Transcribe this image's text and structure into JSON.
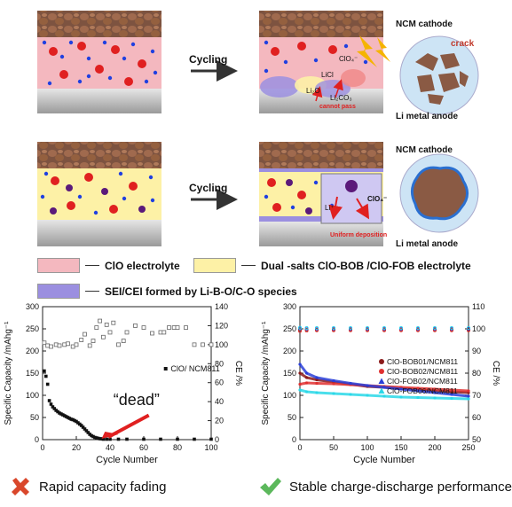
{
  "schematic": {
    "arrow_top_label": "Cycling",
    "arrow_bottom_label": "Cycling",
    "ncm_cathode_top": "NCM cathode",
    "ncm_cathode_bottom": "NCM cathode",
    "li_anode_top": "Li metal anode",
    "li_anode_bottom": "Li metal anode",
    "crack": "crack",
    "clo_top": "ClO₄⁻",
    "clo_bottom": "ClO₄⁻",
    "licl": "LiCl",
    "li2o": "Li₂O",
    "li2co3": "Li₂CO₃",
    "li_plus": "Li⁺",
    "cannot_pass": "cannot pass",
    "uniform_deposition": "Uniform deposition"
  },
  "legend": {
    "item1": "ClO electrolyte",
    "item2": "Dual -salts ClO-BOB /ClO-FOB electrolyte",
    "item3": "SEI/CEI formed by Li-B-O/C-O species"
  },
  "colors": {
    "clo_electrolyte": "#f4b8bf",
    "dual_salt_electrolyte": "#fdf1a6",
    "sei_cei": "#9b8fe0",
    "cathode": "#8a5a44",
    "anode": "#b8b8b8",
    "red_ion": "#e02020",
    "blue_ion": "#2040e0"
  },
  "chart_data": [
    {
      "type": "scatter",
      "title": "",
      "xlabel": "Cycle Number",
      "ylabel": "Specific Capacity /mAhg⁻¹",
      "y2label": "CE /%",
      "xlim": [
        0,
        100
      ],
      "ylim": [
        0,
        300
      ],
      "y2lim": [
        0,
        140
      ],
      "xticks": [
        "0",
        "20",
        "40",
        "60",
        "80",
        "100"
      ],
      "yticks": [
        "0",
        "50",
        "100",
        "150",
        "200",
        "250",
        "300"
      ],
      "y2ticks": [
        "0",
        "20",
        "40",
        "60",
        "80",
        "100",
        "120",
        "140"
      ],
      "annotation": "“dead”",
      "series": [
        {
          "name": "ClO/ NCM811",
          "marker": "filled-square",
          "x": [
            1,
            2,
            3,
            4,
            5,
            6,
            7,
            8,
            9,
            10,
            11,
            12,
            13,
            14,
            15,
            16,
            17,
            18,
            19,
            20,
            21,
            22,
            23,
            24,
            25,
            26,
            27,
            28,
            29,
            30,
            31,
            32,
            33,
            34,
            35,
            36,
            38,
            40,
            45,
            50,
            60,
            70,
            80,
            90,
            100
          ],
          "values": [
            155,
            143,
            125,
            88,
            80,
            74,
            70,
            66,
            63,
            60,
            58,
            56,
            54,
            52,
            50,
            48,
            46,
            45,
            43,
            41,
            38,
            35,
            32,
            28,
            24,
            20,
            16,
            12,
            9,
            7,
            5,
            4,
            3,
            2,
            2,
            1,
            1,
            1,
            1,
            1,
            1,
            1,
            1,
            1,
            1
          ]
        },
        {
          "name": "CE",
          "marker": "open-square",
          "axis": "right",
          "x": [
            1,
            3,
            5,
            8,
            10,
            13,
            15,
            18,
            20,
            23,
            25,
            28,
            30,
            32,
            34,
            36,
            38,
            40,
            42,
            45,
            48,
            50,
            55,
            60,
            65,
            70,
            72,
            75,
            78,
            80,
            85,
            90,
            95,
            100
          ],
          "values": [
            102,
            99,
            98,
            100,
            99,
            100,
            101,
            98,
            100,
            105,
            111,
            99,
            104,
            118,
            125,
            108,
            121,
            113,
            123,
            100,
            104,
            113,
            120,
            118,
            112,
            113,
            113,
            118,
            118,
            118,
            118,
            100,
            100,
            100
          ]
        }
      ]
    },
    {
      "type": "scatter",
      "title": "",
      "xlabel": "Cycle Number",
      "ylabel": "Specific Capacity /mAhg⁻¹",
      "y2label": "CE /%",
      "xlim": [
        0,
        250
      ],
      "ylim": [
        0,
        300
      ],
      "y2lim": [
        50,
        110
      ],
      "xticks": [
        "0",
        "50",
        "100",
        "150",
        "200",
        "250"
      ],
      "yticks": [
        "0",
        "50",
        "100",
        "150",
        "200",
        "250",
        "300"
      ],
      "y2ticks": [
        "50",
        "60",
        "70",
        "80",
        "90",
        "100",
        "110"
      ],
      "legend_position": "center-right",
      "series": [
        {
          "name": "ClO-BOB01/NCM811",
          "color": "#8b1a1a",
          "x": [
            0,
            10,
            25,
            50,
            75,
            100,
            125,
            150,
            175,
            200,
            225,
            250
          ],
          "values": [
            150,
            140,
            135,
            130,
            125,
            120,
            118,
            115,
            113,
            110,
            108,
            106
          ],
          "ce": [
            99.5,
            99.6,
            99.6,
            99.7,
            99.7,
            99.7,
            99.7,
            99.7,
            99.7,
            99.7,
            99.7,
            99.7
          ]
        },
        {
          "name": "ClO-BOB02/NCM811",
          "color": "#e03030",
          "x": [
            0,
            10,
            25,
            50,
            75,
            100,
            125,
            150,
            175,
            200,
            225,
            250
          ],
          "values": [
            125,
            128,
            127,
            126,
            124,
            122,
            120,
            118,
            116,
            114,
            112,
            110
          ],
          "ce": [
            99.0,
            99.2,
            99.3,
            99.3,
            99.3,
            99.3,
            99.3,
            99.3,
            99.3,
            99.3,
            99.3,
            99.3
          ]
        },
        {
          "name": "ClO-FOB02/NCM811",
          "color": "#2a3fd8",
          "x": [
            0,
            10,
            25,
            50,
            75,
            100,
            125,
            150,
            175,
            200,
            225,
            250
          ],
          "values": [
            170,
            150,
            140,
            133,
            127,
            122,
            118,
            114,
            110,
            106,
            102,
            98
          ],
          "ce": [
            100.2,
            100.1,
            100.1,
            100.1,
            100.1,
            100.1,
            100.1,
            100.1,
            100.1,
            100.1,
            100.1,
            100.1
          ]
        },
        {
          "name": "ClO-FOB06/NCM811",
          "color": "#2ad8e8",
          "x": [
            0,
            10,
            25,
            50,
            75,
            100,
            125,
            150,
            175,
            200,
            225,
            250
          ],
          "values": [
            112,
            108,
            106,
            104,
            102,
            100,
            98,
            96,
            95,
            94,
            93,
            92
          ],
          "ce": [
            100.5,
            100.4,
            100.4,
            100.4,
            100.4,
            100.4,
            100.4,
            100.4,
            100.4,
            100.4,
            100.4,
            100.4
          ]
        }
      ]
    }
  ],
  "footer": {
    "left": "Rapid capacity fading",
    "right": "Stable charge-discharge performance"
  }
}
